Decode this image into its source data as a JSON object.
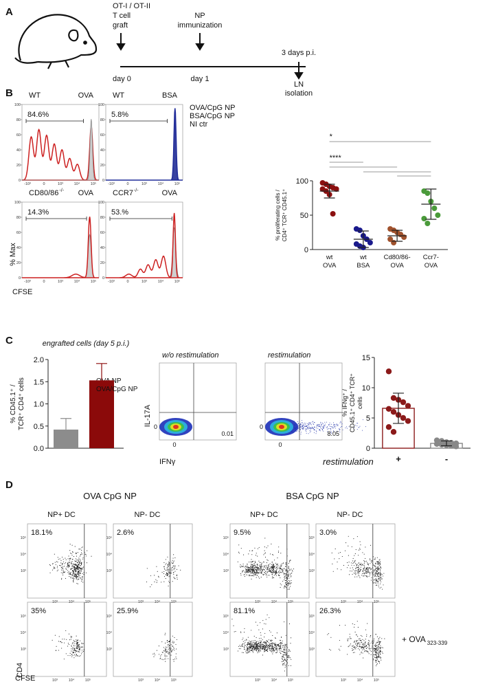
{
  "panel_labels": [
    "A",
    "B",
    "C",
    "D"
  ],
  "panel_a": {
    "graft": [
      "OT-I / OT-II",
      "T cell",
      "graft"
    ],
    "graft_day": "day 0",
    "immunization": [
      "NP",
      "immunization"
    ],
    "immunization_day": "day 1",
    "endpoint": "3 days p.i.",
    "isolation": [
      "LN",
      "isolation"
    ]
  },
  "panel_b": {
    "histograms": [
      {
        "genotype": "WT",
        "antigen": "OVA",
        "gate": "84.6%"
      },
      {
        "genotype": "WT",
        "antigen": "BSA",
        "gate": "5.8%"
      },
      {
        "genotype": "CD80/86",
        "genotype_sup": "-/-",
        "antigen": "OVA",
        "gate": "14.3%"
      },
      {
        "genotype": "CCR7",
        "genotype_sup": "-/-",
        "antigen": "OVA",
        "gate": "53.%"
      }
    ],
    "legend": [
      {
        "name": "OVA/CpG NP",
        "color": "#cc1f1f"
      },
      {
        "name": "BSA/CpG NP",
        "color": "#1f2a99"
      },
      {
        "name": "NI ctr",
        "color": "#999999"
      }
    ],
    "y_label": "% Max",
    "x_label": "CFSE",
    "yticks": [
      0,
      20,
      40,
      60,
      80,
      100
    ],
    "xtick_labels": [
      "-10³",
      "0",
      "10³",
      "10⁴",
      "10⁵"
    ],
    "dotplot": {
      "type": "dot",
      "y_label": [
        "% proliferating cells /",
        "CD4⁺ TCR⁺ CD45.1⁺"
      ],
      "ylim": [
        0,
        100
      ],
      "yticks": [
        0,
        50,
        100
      ],
      "significance": [
        "*",
        "****"
      ],
      "groups": [
        {
          "label": [
            "wt",
            "OVA"
          ],
          "color": "#8b1010",
          "values": [
            97,
            95,
            92,
            90,
            88,
            88,
            85,
            80,
            52
          ],
          "mean": 85,
          "sd": 10
        },
        {
          "label": [
            "wt",
            "BSA"
          ],
          "color": "#1a1a8c",
          "values": [
            30,
            28,
            20,
            15,
            10,
            8,
            5,
            3
          ],
          "mean": 15,
          "sd": 12
        },
        {
          "label": [
            "Cd80/86-",
            "OVA"
          ],
          "color": "#a0522d",
          "values": [
            30,
            28,
            25,
            22,
            18,
            15,
            10
          ],
          "mean": 20,
          "sd": 8
        },
        {
          "label": [
            "Ccr7-",
            "OVA"
          ],
          "color": "#4a9a3a",
          "values": [
            85,
            82,
            70,
            60,
            50,
            45,
            38
          ],
          "mean": 66,
          "sd": 22
        }
      ]
    }
  },
  "panel_c": {
    "bar": {
      "type": "bar",
      "title": "engrafted cells (day 5 p.i.)",
      "y_label": [
        "% CD45.1⁺ /",
        "TCR⁺ CD4⁺ cells"
      ],
      "ylim": [
        0,
        2
      ],
      "yticks": [
        {
          "value": 0,
          "label": "0.0"
        },
        {
          "value": 0.5,
          "label": "0.5"
        },
        {
          "value": 1,
          "label": "1.0"
        },
        {
          "value": 1.5,
          "label": "1.5"
        },
        {
          "value": 2,
          "label": "2.0"
        }
      ],
      "series": [
        {
          "name": "OVA NP",
          "color": "#8c8c8c",
          "value": 0.42,
          "error": 0.25
        },
        {
          "name": "OVA/CpG NP",
          "color": "#8b0a0a",
          "value": 1.53,
          "error": 0.38
        }
      ]
    },
    "flow": {
      "plots": [
        {
          "title": "w/o restimulation",
          "quadrant": "0.01"
        },
        {
          "title": "restimulation",
          "quadrant": "8.05"
        }
      ],
      "y_label": "IL-17A",
      "x_label": "IFNγ",
      "tick": "0"
    },
    "restim": {
      "type": "dot",
      "y_label": [
        "% IFNg⁺ /",
        "CD45.1⁺ CD4⁺ TCR⁺",
        "cells"
      ],
      "x_label": "restimulation",
      "ylim": [
        0,
        15
      ],
      "yticks": [
        0,
        5,
        10,
        15
      ],
      "groups": [
        {
          "label": "+",
          "color": "#8b1a1a",
          "values": [
            12.7,
            8.3,
            8,
            7.6,
            7,
            6.5,
            6,
            5.5,
            5,
            4.5,
            3.5,
            2.7
          ],
          "mean": 6.6,
          "sd": 2.5
        },
        {
          "label": "-",
          "color": "#888888",
          "values": [
            1.3,
            1.2,
            1,
            0.9,
            0.8,
            0.7,
            0.6,
            0.5,
            0.4,
            0.3
          ],
          "mean": 0.8,
          "sd": 0.4
        }
      ]
    }
  },
  "panel_d": {
    "columns": [
      "NP+ DC",
      "NP- DC"
    ],
    "groups": [
      {
        "title": "OVA CpG NP",
        "color": "#8b1a1a",
        "gates": [
          [
            "18.1%",
            "2.6%"
          ],
          [
            "35%",
            "25.9%"
          ]
        ]
      },
      {
        "title": "BSA CpG NP",
        "color": "#1f2a99",
        "gates": [
          [
            "9.5%",
            "3.0%"
          ],
          [
            "81.1%",
            "26.3%"
          ]
        ]
      }
    ],
    "peptide": "+ OVA",
    "peptide_sub": "323-339",
    "y_label": "CD4",
    "x_label": "CFSE",
    "tick_labels": [
      "10³",
      "10⁴",
      "10⁵"
    ]
  }
}
